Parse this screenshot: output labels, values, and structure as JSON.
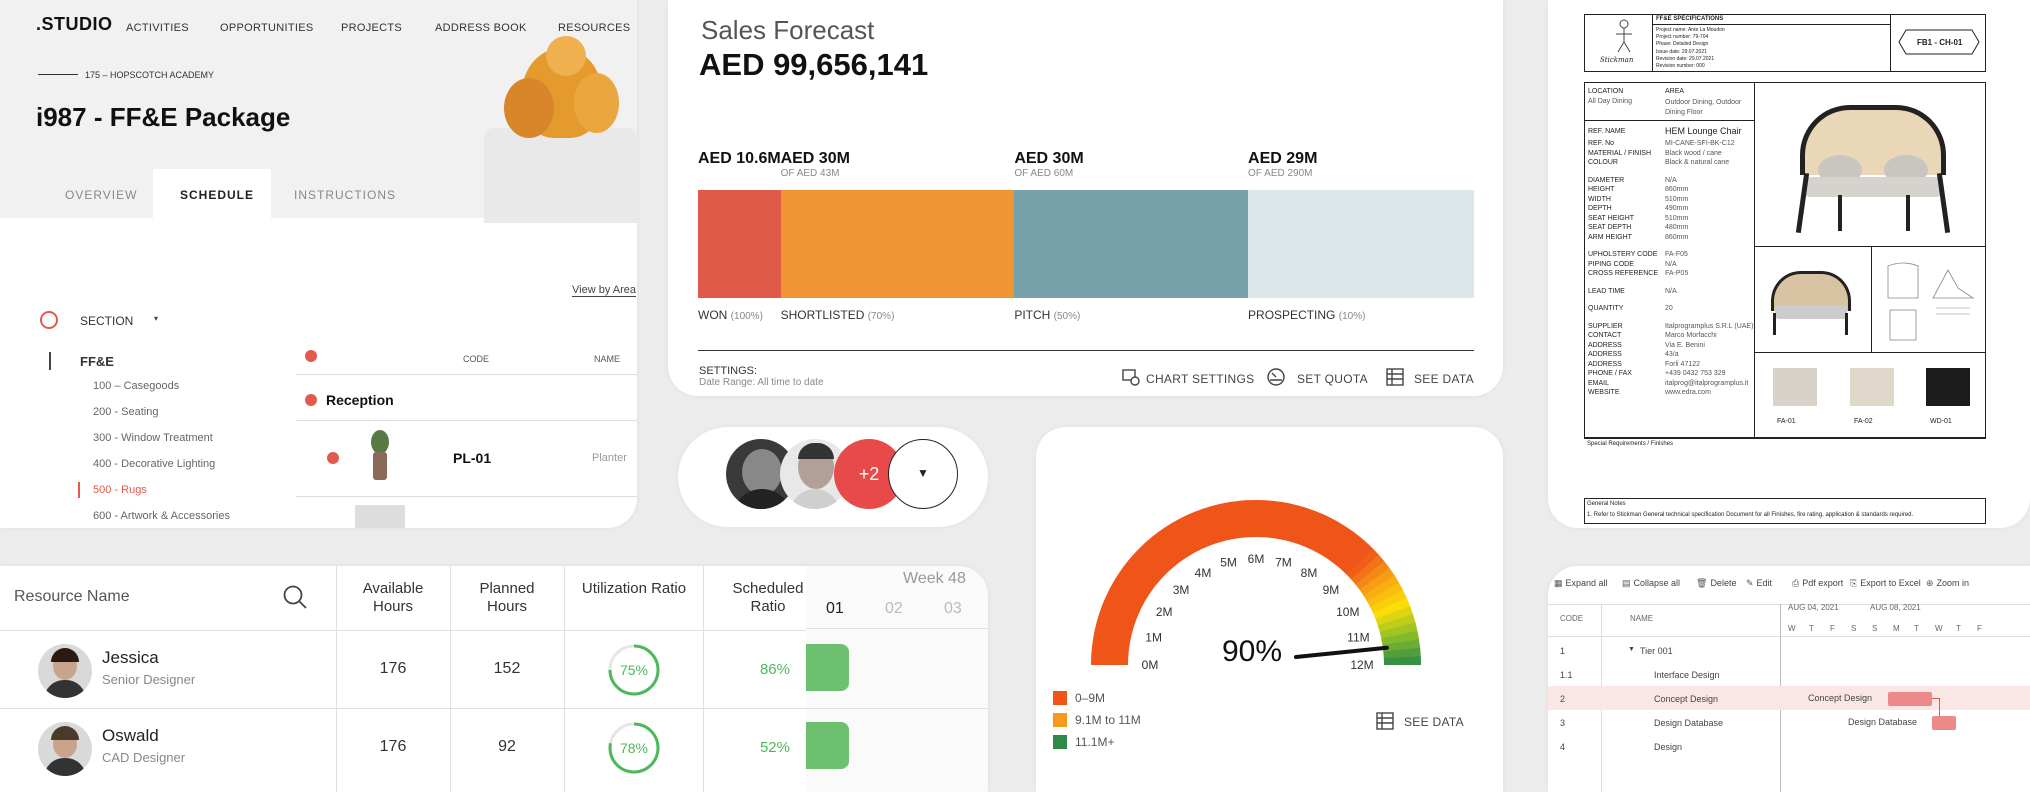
{
  "studio": {
    "logo": ".STUDIO",
    "nav": [
      "ACTIVITIES",
      "OPPORTUNITIES",
      "PROJECTS",
      "ADDRESS BOOK",
      "RESOURCES"
    ],
    "breadcrumb": "175 – HOPSCOTCH ACADEMY",
    "title": "i987 - FF&E Package",
    "tabs": [
      "OVERVIEW",
      "SCHEDULE",
      "INSTRUCTIONS"
    ],
    "view_by": "View by Area",
    "section_label": "SECTION",
    "tree_root": "FF&E",
    "tree_items": [
      "100 – Casegoods",
      "200 - Seating",
      "300 - Window Treatment",
      "400 - Decorative Lighting",
      "500 - Rugs",
      "600 - Artwork & Accessories"
    ],
    "col_code": "CODE",
    "col_name": "NAME",
    "group": "Reception",
    "row_code": "PL-01",
    "row_name": "Planter"
  },
  "forecast": {
    "title": "Sales Forecast",
    "total": "AED 99,656,141",
    "segments": [
      {
        "value": "AED 10.6M",
        "sub": "",
        "label": "WON",
        "pct": "(100%)",
        "color": "#df5a48",
        "amount": 10.6
      },
      {
        "value": "AED 30M",
        "sub": "OF AED 43M",
        "label": "SHORTLISTED",
        "pct": "(70%)",
        "color": "#ef9533",
        "amount": 30
      },
      {
        "value": "AED 30M",
        "sub": "OF AED 60M",
        "label": "PITCH",
        "pct": "(50%)",
        "color": "#76a1ab",
        "amount": 30
      },
      {
        "value": "AED 29M",
        "sub": "OF AED 290M",
        "label": "PROSPECTING",
        "pct": "(10%)",
        "color": "#dce7e9",
        "amount": 29
      }
    ],
    "settings_label": "SETTINGS:",
    "settings_value": "Date Range: All time to date",
    "chart_settings": "CHART SETTINGS",
    "set_quota": "SET QUOTA",
    "see_data": "SEE DATA"
  },
  "avatars": {
    "more": "+2"
  },
  "spec": {
    "header_title": "FF&E SPECIFICATIONS",
    "header_lines": [
      "Project name: Ante La Moudon",
      "Project number: 79-704",
      "Phase: Detailed Design",
      "Issue date: 29.07.2021",
      "Revision date: 29.07.2021",
      "Revision number: 000"
    ],
    "code": "FB1 - CH-01",
    "brand": "Stickman",
    "location_label": "LOCATION",
    "location_value": "All Day Dining",
    "area_label": "AREA",
    "area_value": "Outdoor Dining, Outdoor Dining Floor",
    "ref_name_label": "REF. NAME",
    "ref_name_value": "HEM Lounge Chair",
    "fields": [
      [
        "REF. No",
        "MI-CANE-SFI-BK-C12"
      ],
      [
        "MATERIAL / FINISH",
        "Black wood / cane"
      ],
      [
        "COLOUR",
        "Black & natural cane"
      ],
      [
        "",
        ""
      ],
      [
        "DIAMETER",
        "N/A"
      ],
      [
        "HEIGHT",
        "860mm"
      ],
      [
        "WIDTH",
        "510mm"
      ],
      [
        "DEPTH",
        "490mm"
      ],
      [
        "SEAT HEIGHT",
        "510mm"
      ],
      [
        "SEAT DEPTH",
        "480mm"
      ],
      [
        "ARM HEIGHT",
        "860mm"
      ],
      [
        "",
        ""
      ],
      [
        "UPHOLSTERY CODE",
        "FA-F05"
      ],
      [
        "PIPING CODE",
        "N/A"
      ],
      [
        "CROSS REFERENCE",
        "FA-P05"
      ],
      [
        "",
        ""
      ],
      [
        "LEAD TIME",
        "N/A"
      ],
      [
        "",
        ""
      ],
      [
        "QUANTITY",
        "20"
      ],
      [
        "",
        ""
      ],
      [
        "SUPPLIER",
        "Italprogramplus S.R.L (UAE)"
      ],
      [
        "CONTACT",
        "Marco Morfacchi"
      ],
      [
        "ADDRESS",
        "Via E. Benini"
      ],
      [
        "ADDRESS",
        "43/a"
      ],
      [
        "ADDRESS",
        "Forli 47122"
      ],
      [
        "PHONE / FAX",
        "+439 0432 753 329"
      ],
      [
        "EMAIL",
        "italprog@italprogramplus.it"
      ],
      [
        "WEBSITE",
        "www.edra.com"
      ]
    ],
    "swatches": [
      {
        "code": "FA-01",
        "color": "#d8d2c8"
      },
      {
        "code": "FA-02",
        "color": "#e0d8ca"
      },
      {
        "code": "WD-01",
        "color": "#1c1c1c"
      }
    ],
    "special": "Special Requirements / Finishes",
    "notes_title": "General Notes",
    "notes": "1. Refer to Stickman General technical specification Document for all Finishes, fire rating, application & standards required."
  },
  "resources": {
    "resource_col": "Resource Name",
    "columns": [
      "Available Hours",
      "Planned Hours",
      "Utilization Ratio",
      "Scheduled Ratio"
    ],
    "week": "Week 48",
    "week_days": [
      "01",
      "02",
      "03"
    ],
    "people": [
      {
        "name": "Jessica",
        "role": "Senior Designer",
        "available": "176",
        "planned": "152",
        "utilization": "75%",
        "util_value": 75,
        "scheduled": "86%"
      },
      {
        "name": "Oswald",
        "role": "CAD Designer",
        "available": "176",
        "planned": "92",
        "utilization": "78%",
        "util_value": 78,
        "scheduled": "52%"
      }
    ]
  },
  "gauge": {
    "ticks": [
      "0M",
      "1M",
      "2M",
      "3M",
      "4M",
      "5M",
      "6M",
      "7M",
      "8M",
      "9M",
      "10M",
      "11M",
      "12M"
    ],
    "value_text": "90%",
    "value": 0.9,
    "legend": [
      {
        "label": "0–9M",
        "color": "#ef5419"
      },
      {
        "label": "9.1M to 11M",
        "color": "#f59a1d"
      },
      {
        "label": "11.1M+",
        "color": "#2d8a47"
      }
    ],
    "see_data": "SEE DATA"
  },
  "gantt": {
    "toolbar": [
      "Expand all",
      "Collapse all",
      "Delete",
      "Edit",
      "Pdf export",
      "Export to Excel",
      "Zoom in"
    ],
    "col_code": "CODE",
    "col_name": "NAME",
    "week1": "AUG 04, 2021",
    "week2": "AUG 08, 2021",
    "days": [
      "W",
      "T",
      "F",
      "S",
      "S",
      "M",
      "T",
      "W",
      "T",
      "F"
    ],
    "rows": [
      {
        "code": "1",
        "name": "Tier 001"
      },
      {
        "code": "1.1",
        "name": "Interface Design"
      },
      {
        "code": "2",
        "name": "Concept Design"
      },
      {
        "code": "3",
        "name": "Design Database"
      },
      {
        "code": "4",
        "name": "Design"
      }
    ],
    "bar1": "Concept Design",
    "bar2": "Design Database"
  }
}
